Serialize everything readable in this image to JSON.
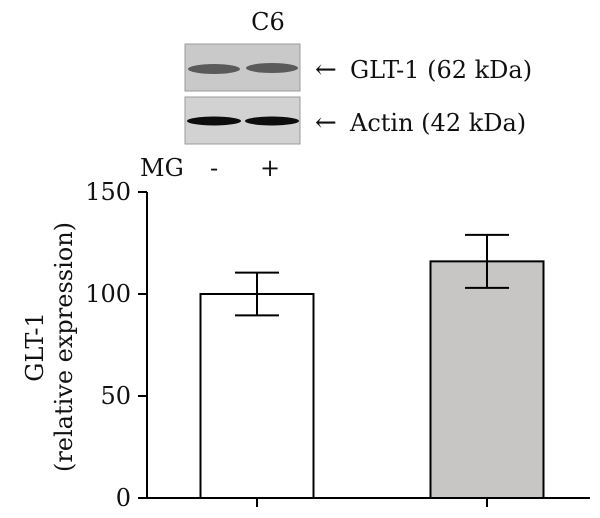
{
  "panel_label": "C6",
  "blot": {
    "bands": [
      {
        "label": "GLT-1 (62 kDa)",
        "colors": {
          "bg": "#c9c9c9",
          "band": "#5a5a5a"
        }
      },
      {
        "label": "Actin (42 kDa)",
        "colors": {
          "bg": "#d2d2d2",
          "band": "#0d0d0d"
        }
      }
    ],
    "lanes_label": "MG",
    "lanes": [
      "-",
      "+"
    ]
  },
  "chart_data": {
    "type": "bar",
    "categories": [
      "-",
      "+"
    ],
    "values": [
      100,
      116
    ],
    "errors": [
      10.5,
      13
    ],
    "colors": [
      "#ffffff",
      "#c8c6c5"
    ],
    "ylabel_lines": [
      "GLT-1",
      "(relative expression)"
    ],
    "ylim": [
      0,
      150
    ],
    "yticks": [
      0,
      50,
      100,
      150
    ],
    "grid": false
  }
}
